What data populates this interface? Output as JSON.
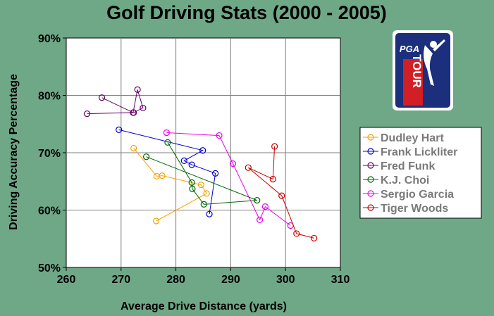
{
  "logo": {
    "line1": "PGA",
    "line2": "TOUR",
    "colors": {
      "blue": "#1b2f7c",
      "red": "#d21f26"
    }
  },
  "chart_data": {
    "type": "scatter",
    "title": "Golf Driving Stats (2000 - 2005)",
    "xlabel": "Average Drive Distance (yards)",
    "ylabel": "Driving Accuracy Percentage",
    "xlim": [
      260,
      310
    ],
    "ylim": [
      50,
      90
    ],
    "xticks": [
      260,
      270,
      280,
      290,
      300,
      310
    ],
    "yticks": [
      50,
      60,
      70,
      80,
      90
    ],
    "xtick_labels": [
      "260",
      "270",
      "280",
      "290",
      "300",
      "310"
    ],
    "ytick_labels": [
      "50%",
      "60%",
      "70%",
      "80%",
      "90%"
    ],
    "grid": true,
    "plot_background": "#ffffff",
    "legend_position": "right",
    "markers": "open-circle",
    "connected": true,
    "series": [
      {
        "name": "Dudley Hart",
        "color": "#f5a300",
        "points": [
          [
            272.3,
            70.8
          ],
          [
            276.5,
            65.9
          ],
          [
            277.5,
            66.0
          ],
          [
            284.6,
            64.4
          ],
          [
            285.6,
            62.9
          ],
          [
            276.4,
            58.1
          ]
        ]
      },
      {
        "name": "Frank Lickliter",
        "color": "#0000cc",
        "points": [
          [
            269.6,
            74.0
          ],
          [
            284.9,
            70.4
          ],
          [
            281.5,
            68.6
          ],
          [
            282.9,
            67.9
          ],
          [
            287.2,
            66.4
          ],
          [
            286.1,
            59.3
          ]
        ]
      },
      {
        "name": "Fred Funk",
        "color": "#660066",
        "points": [
          [
            263.8,
            76.8
          ],
          [
            272.3,
            77.0
          ],
          [
            274.0,
            77.8
          ],
          [
            273.0,
            81.0
          ],
          [
            272.2,
            77.0
          ],
          [
            266.5,
            79.6
          ]
        ]
      },
      {
        "name": "K.J. Choi",
        "color": "#006600",
        "points": [
          [
            278.5,
            71.8
          ],
          [
            282.9,
            64.8
          ],
          [
            283.0,
            63.7
          ],
          [
            285.1,
            61.0
          ],
          [
            294.8,
            61.7
          ],
          [
            274.6,
            69.3
          ]
        ]
      },
      {
        "name": "Sergio Garcia",
        "color": "#ee00ee",
        "points": [
          [
            278.3,
            73.5
          ],
          [
            287.9,
            73.0
          ],
          [
            290.4,
            68.1
          ],
          [
            295.3,
            58.3
          ],
          [
            296.3,
            60.6
          ],
          [
            300.9,
            57.3
          ]
        ]
      },
      {
        "name": "Tiger Woods",
        "color": "#cc0000",
        "points": [
          [
            298.0,
            71.1
          ],
          [
            297.7,
            65.4
          ],
          [
            293.2,
            67.4
          ],
          [
            299.3,
            62.5
          ],
          [
            302.0,
            55.9
          ],
          [
            305.2,
            55.1
          ]
        ]
      }
    ]
  }
}
